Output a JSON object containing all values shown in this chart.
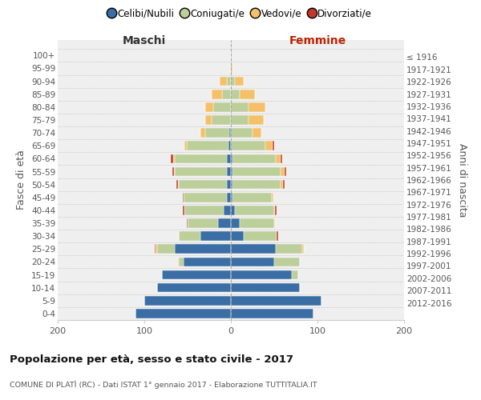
{
  "age_groups": [
    "0-4",
    "5-9",
    "10-14",
    "15-19",
    "20-24",
    "25-29",
    "30-34",
    "35-39",
    "40-44",
    "45-49",
    "50-54",
    "55-59",
    "60-64",
    "65-69",
    "70-74",
    "75-79",
    "80-84",
    "85-89",
    "90-94",
    "95-99",
    "100+"
  ],
  "birth_years": [
    "2012-2016",
    "2007-2011",
    "2002-2006",
    "1997-2001",
    "1992-1996",
    "1987-1991",
    "1982-1986",
    "1977-1981",
    "1972-1976",
    "1967-1971",
    "1962-1966",
    "1957-1961",
    "1952-1956",
    "1947-1951",
    "1942-1946",
    "1937-1941",
    "1932-1936",
    "1927-1931",
    "1922-1926",
    "1917-1921",
    "≤ 1916"
  ],
  "males_celibi": [
    110,
    100,
    85,
    80,
    55,
    65,
    35,
    15,
    8,
    5,
    5,
    5,
    5,
    3,
    2,
    0,
    0,
    0,
    0,
    0,
    0
  ],
  "males_coniugati": [
    0,
    0,
    0,
    0,
    5,
    20,
    25,
    35,
    46,
    50,
    55,
    60,
    60,
    48,
    28,
    22,
    20,
    10,
    5,
    0,
    0
  ],
  "males_vedovi": [
    0,
    0,
    0,
    0,
    1,
    2,
    0,
    0,
    0,
    0,
    1,
    1,
    2,
    3,
    5,
    8,
    10,
    12,
    8,
    1,
    0
  ],
  "males_divorziati": [
    0,
    0,
    0,
    0,
    0,
    1,
    0,
    1,
    2,
    1,
    2,
    2,
    2,
    0,
    0,
    0,
    0,
    0,
    0,
    0,
    0
  ],
  "females_nubili": [
    95,
    105,
    80,
    70,
    50,
    52,
    15,
    10,
    5,
    2,
    2,
    2,
    2,
    0,
    0,
    0,
    0,
    0,
    0,
    0,
    0
  ],
  "females_coniugate": [
    0,
    0,
    0,
    8,
    30,
    30,
    38,
    40,
    45,
    45,
    55,
    55,
    50,
    40,
    25,
    20,
    20,
    10,
    5,
    0,
    0
  ],
  "females_vedove": [
    0,
    0,
    0,
    0,
    0,
    2,
    0,
    1,
    1,
    2,
    3,
    5,
    5,
    8,
    10,
    18,
    20,
    18,
    10,
    2,
    1
  ],
  "females_divorziate": [
    0,
    0,
    0,
    0,
    0,
    0,
    2,
    0,
    2,
    0,
    2,
    2,
    2,
    2,
    0,
    0,
    0,
    0,
    0,
    0,
    0
  ],
  "colors_celibi": "#3A6EA5",
  "colors_coniugati": "#BCCF9A",
  "colors_vedovi": "#F5C06A",
  "colors_divorziati": "#C0392B",
  "xlim": 200,
  "title": "Popolazione per età, sesso e stato civile - 2017",
  "subtitle": "COMUNE DI PLATÌ (RC) - Dati ISTAT 1° gennaio 2017 - Elaborazione TUTTITALIA.IT",
  "ylabel_left": "Fasce di età",
  "ylabel_right": "Anni di nascita",
  "label_maschi": "Maschi",
  "label_femmine": "Femmine",
  "legend_labels": [
    "Celibi/Nubili",
    "Coniugati/e",
    "Vedovi/e",
    "Divorziati/e"
  ],
  "bg_color": "#efefef"
}
